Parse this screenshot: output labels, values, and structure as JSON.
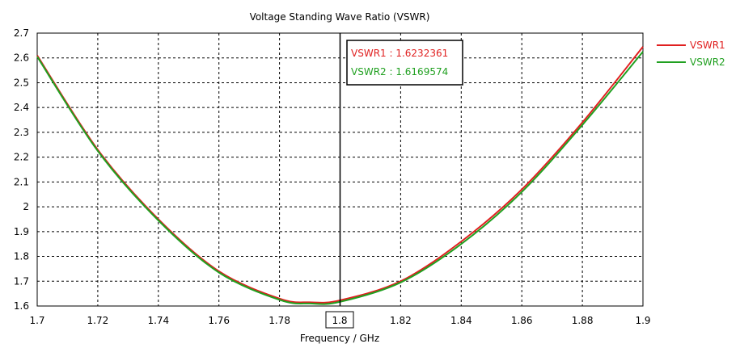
{
  "chart_data": {
    "type": "line",
    "title": "Voltage Standing Wave Ratio (VSWR)",
    "xlabel": "Frequency / GHz",
    "ylabel": "",
    "xlim": [
      1.7,
      1.9
    ],
    "ylim": [
      1.6,
      2.7
    ],
    "grid": true,
    "legend_placement": "right",
    "x_ticks": [
      "1.7",
      "1.72",
      "1.74",
      "1.76",
      "1.78",
      "1.8",
      "1.82",
      "1.84",
      "1.86",
      "1.88",
      "1.9"
    ],
    "x_tick_values": [
      1.7,
      1.72,
      1.74,
      1.76,
      1.78,
      1.8,
      1.82,
      1.84,
      1.86,
      1.88,
      1.9
    ],
    "y_ticks": [
      "1.6",
      "1.7",
      "1.8",
      "1.9",
      "2",
      "2.1",
      "2.2",
      "2.3",
      "2.4",
      "2.5",
      "2.6",
      "2.7"
    ],
    "y_tick_values": [
      1.6,
      1.7,
      1.8,
      1.9,
      2.0,
      2.1,
      2.2,
      2.3,
      2.4,
      2.5,
      2.6,
      2.7
    ],
    "x": [
      1.7,
      1.72,
      1.74,
      1.76,
      1.78,
      1.79,
      1.8,
      1.82,
      1.84,
      1.86,
      1.88,
      1.9
    ],
    "series": [
      {
        "name": "VSWR1",
        "color": "#e02020",
        "values": [
          2.61,
          2.23,
          1.95,
          1.74,
          1.63,
          1.615,
          1.623,
          1.7,
          1.86,
          2.07,
          2.34,
          2.645
        ]
      },
      {
        "name": "VSWR2",
        "color": "#20a020",
        "values": [
          2.605,
          2.225,
          1.945,
          1.735,
          1.625,
          1.61,
          1.617,
          1.695,
          1.85,
          2.06,
          2.33,
          2.625
        ]
      }
    ],
    "marker": {
      "x": 1.8,
      "x_label": "1.8",
      "readouts": [
        {
          "text": "VSWR1 : 1.6232361",
          "color": "#e02020"
        },
        {
          "text": "VSWR2 : 1.6169574",
          "color": "#20a020"
        }
      ]
    }
  }
}
